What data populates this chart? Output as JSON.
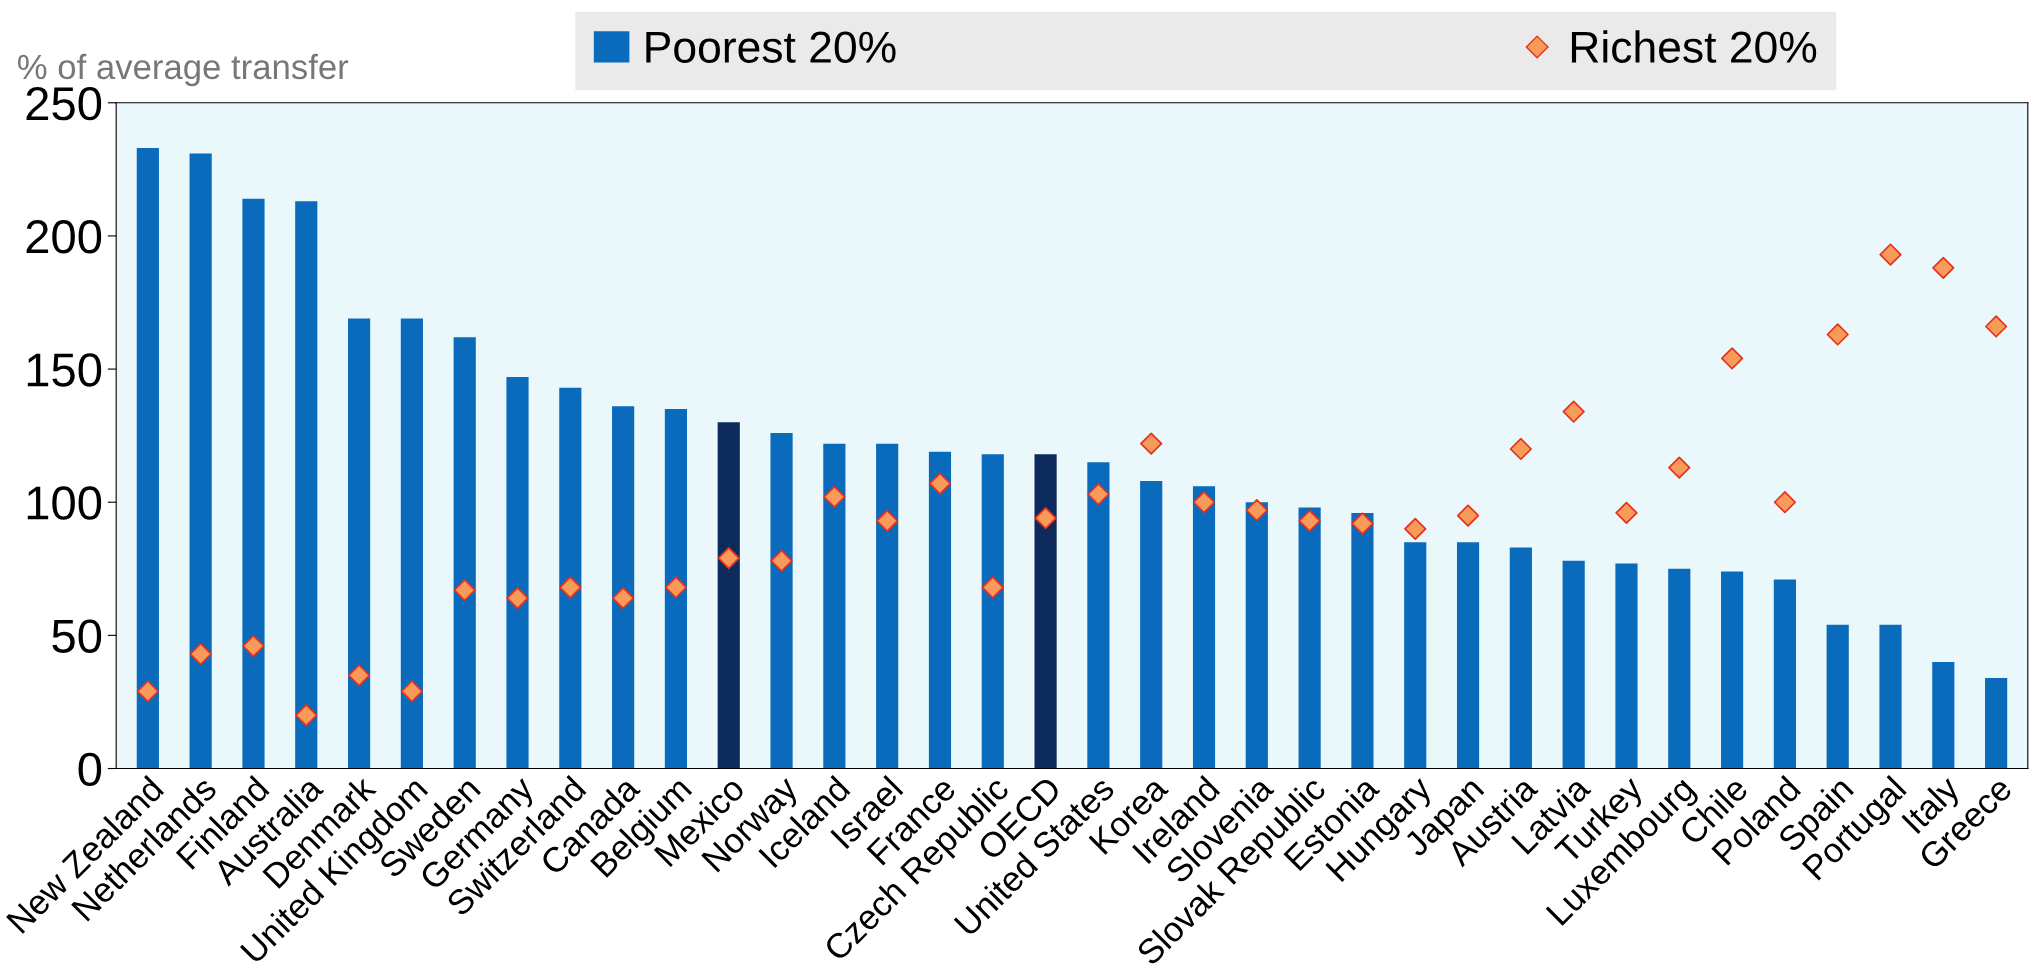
{
  "chart_data": {
    "type": "bar",
    "ylabel": "% of average transfer",
    "categories": [
      "New Zealand",
      "Netherlands",
      "Finland",
      "Australia",
      "Denmark",
      "United Kingdom",
      "Sweden",
      "Germany",
      "Switzerland",
      "Canada",
      "Belgium",
      "Mexico",
      "Norway",
      "Iceland",
      "Israel",
      "France",
      "Czech Republic",
      "OECD",
      "United States",
      "Korea",
      "Ireland",
      "Slovenia",
      "Slovak Republic",
      "Estonia",
      "Hungary",
      "Japan",
      "Austria",
      "Latvia",
      "Turkey",
      "Luxembourg",
      "Chile",
      "Poland",
      "Spain",
      "Portugal",
      "Italy",
      "Greece"
    ],
    "series": [
      {
        "name": "Poorest 20%",
        "color": "#0a6bbd",
        "colors": [
          "#0a6bbd",
          "#0a6bbd",
          "#0a6bbd",
          "#0a6bbd",
          "#0a6bbd",
          "#0a6bbd",
          "#0a6bbd",
          "#0a6bbd",
          "#0a6bbd",
          "#0a6bbd",
          "#0a6bbd",
          "#0d2a5c",
          "#0a6bbd",
          "#0a6bbd",
          "#0a6bbd",
          "#0a6bbd",
          "#0a6bbd",
          "#0d2a5c",
          "#0a6bbd",
          "#0a6bbd",
          "#0a6bbd",
          "#0a6bbd",
          "#0a6bbd",
          "#0a6bbd",
          "#0a6bbd",
          "#0a6bbd",
          "#0a6bbd",
          "#0a6bbd",
          "#0a6bbd",
          "#0a6bbd",
          "#0a6bbd",
          "#0a6bbd",
          "#0a6bbd",
          "#0a6bbd",
          "#0a6bbd",
          "#0a6bbd"
        ],
        "values": [
          233,
          231,
          214,
          213,
          169,
          169,
          162,
          147,
          143,
          136,
          135,
          130,
          126,
          122,
          122,
          119,
          118,
          118,
          115,
          108,
          106,
          100,
          98,
          96,
          85,
          85,
          83,
          78,
          77,
          75,
          74,
          71,
          54,
          54,
          40,
          34
        ]
      },
      {
        "name": "Richest 20%",
        "type": "scatter",
        "marker": "diamond",
        "color": "#f79a5a",
        "values": [
          29,
          43,
          46,
          20,
          35,
          29,
          67,
          64,
          68,
          64,
          68,
          79,
          78,
          102,
          93,
          107,
          68,
          94,
          103,
          122,
          100,
          97,
          93,
          92,
          90,
          95,
          120,
          134,
          96,
          113,
          154,
          100,
          163,
          193,
          188,
          166
        ]
      }
    ],
    "ylim": [
      0,
      250
    ],
    "yticks": [
      0,
      50,
      100,
      150,
      200,
      250
    ],
    "grid": false,
    "legend": "top"
  }
}
